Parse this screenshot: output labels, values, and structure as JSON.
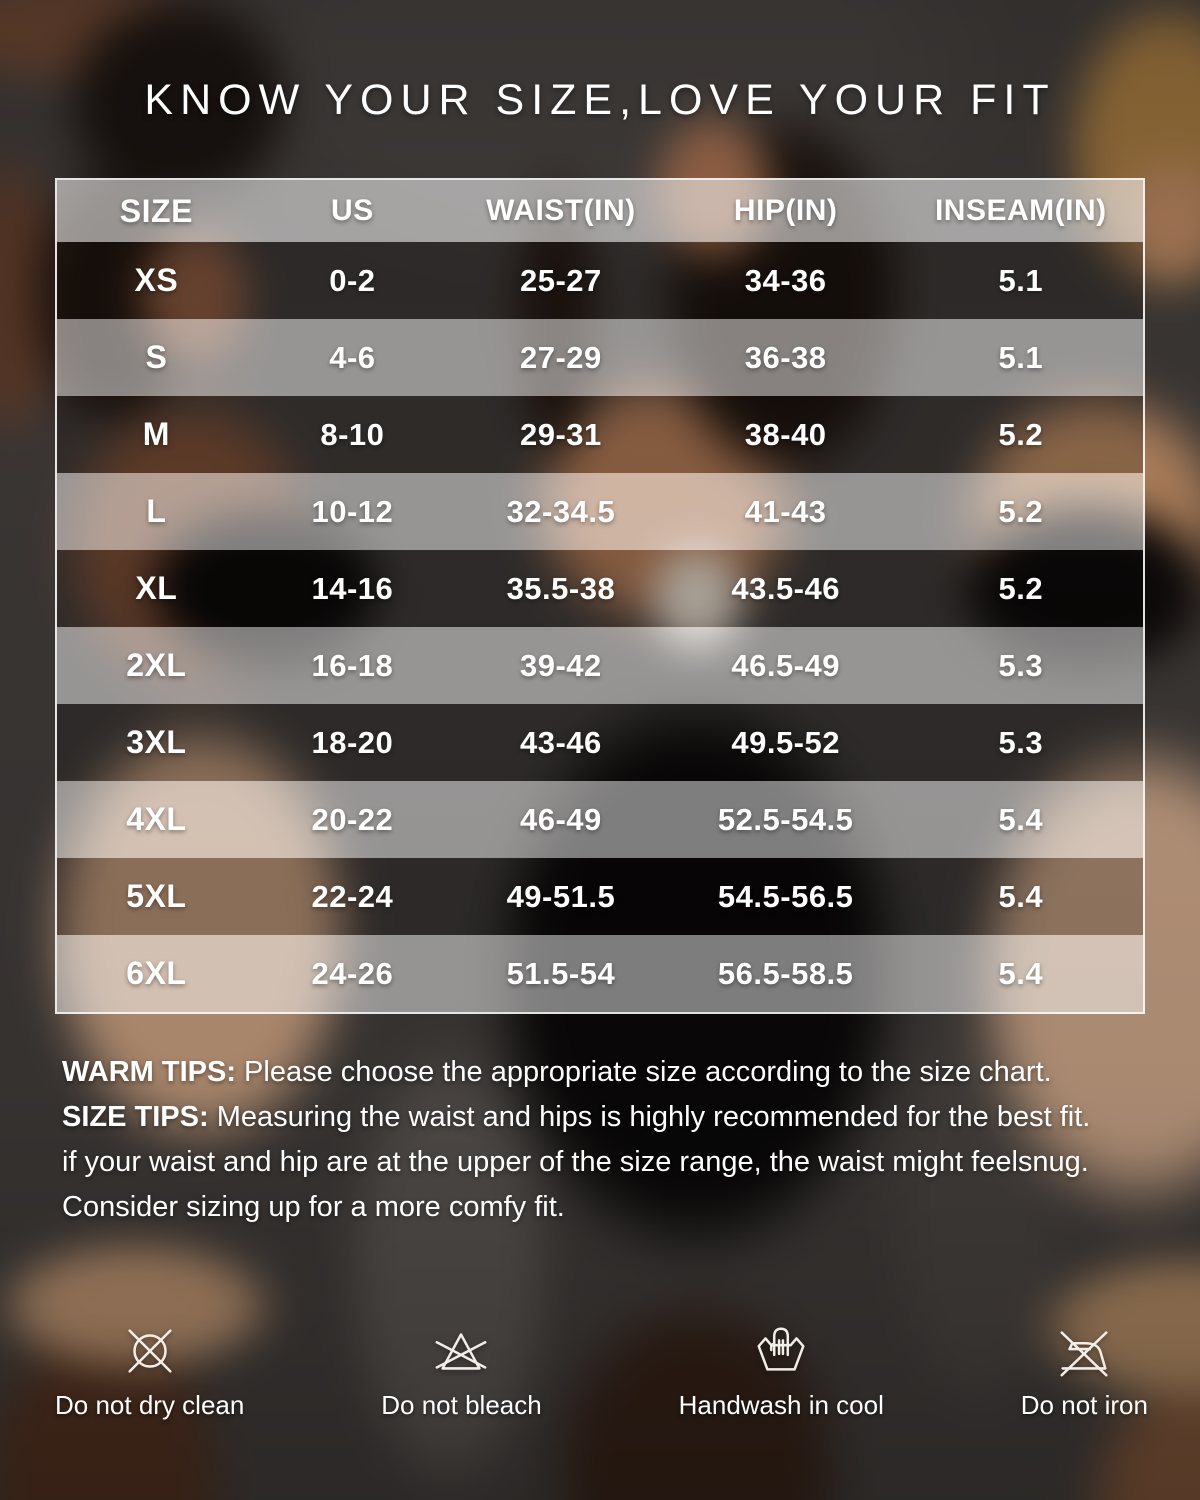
{
  "title": "KNOW YOUR SIZE,LOVE YOUR FIT",
  "table": {
    "headers": [
      "SIZE",
      "US",
      "WAIST(IN)",
      "HIP(IN)",
      "INSEAM(IN)"
    ],
    "rows": [
      [
        "XS",
        "0-2",
        "25-27",
        "34-36",
        "5.1"
      ],
      [
        "S",
        "4-6",
        "27-29",
        "36-38",
        "5.1"
      ],
      [
        "M",
        "8-10",
        "29-31",
        "38-40",
        "5.2"
      ],
      [
        "L",
        "10-12",
        "32-34.5",
        "41-43",
        "5.2"
      ],
      [
        "XL",
        "14-16",
        "35.5-38",
        "43.5-46",
        "5.2"
      ],
      [
        "2XL",
        "16-18",
        "39-42",
        "46.5-49",
        "5.3"
      ],
      [
        "3XL",
        "18-20",
        "43-46",
        "49.5-52",
        "5.3"
      ],
      [
        "4XL",
        "20-22",
        "46-49",
        "52.5-54.5",
        "5.4"
      ],
      [
        "5XL",
        "22-24",
        "49-51.5",
        "54.5-56.5",
        "5.4"
      ],
      [
        "6XL",
        "24-26",
        "51.5-54",
        "56.5-58.5",
        "5.4"
      ]
    ]
  },
  "tips": {
    "items": [
      {
        "bold": "WARM TIPS: ",
        "text": "Please choose the appropriate size according to the size chart."
      },
      {
        "bold": "SIZE TIPS: ",
        "text": "Measuring the waist and hips is highly recommended for the best fit."
      },
      {
        "bold": "",
        "text": "if your waist and hip are at the upper of the size range, the waist might feelsnug."
      },
      {
        "bold": "",
        "text": "Consider sizing up for a more comfy fit."
      }
    ]
  },
  "care": {
    "items": [
      {
        "icon": "do-not-dry-clean-icon",
        "label": "Do not dry clean"
      },
      {
        "icon": "do-not-bleach-icon",
        "label": "Do not bleach"
      },
      {
        "icon": "handwash-icon",
        "label": "Handwash in cool"
      },
      {
        "icon": "do-not-iron-icon",
        "label": "Do not iron"
      }
    ]
  },
  "colors": {
    "background": "#3e3a38",
    "text": "#ffffff",
    "band_header": "rgba(255,255,255,0.55)",
    "band_light": "rgba(255,255,255,0.48)",
    "band_dark": "rgba(0,0,0,0.18)"
  }
}
